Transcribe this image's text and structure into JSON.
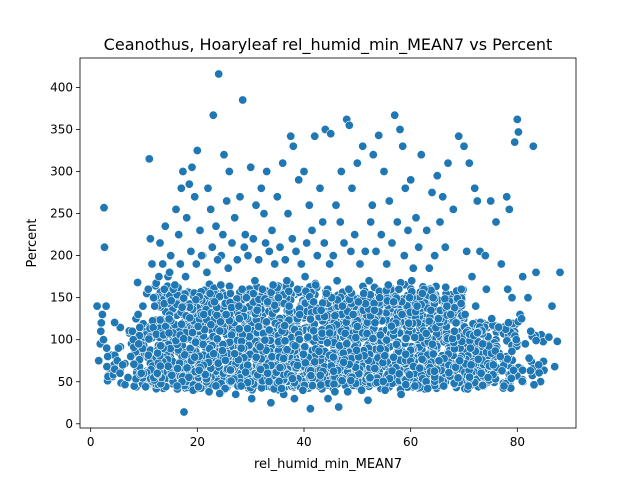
{
  "chart_data": {
    "type": "scatter",
    "title": "Ceanothus, Hoaryleaf rel_humid_min_MEAN7 vs Percent",
    "xlabel": "rel_humid_min_MEAN7",
    "ylabel": "Percent",
    "xlim": [
      -2,
      91
    ],
    "ylim": [
      -5,
      435
    ],
    "xticks": [
      0,
      20,
      40,
      60,
      80
    ],
    "yticks": [
      0,
      50,
      100,
      150,
      200,
      250,
      300,
      350,
      400
    ],
    "grid": false,
    "legend": "none",
    "marker_color": "#1f77b4",
    "marker_edge_color": "#ffffff",
    "points": [
      [
        1.2,
        140
      ],
      [
        1.5,
        75
      ],
      [
        1.8,
        95
      ],
      [
        2.0,
        120
      ],
      [
        2.2,
        130
      ],
      [
        2.5,
        257
      ],
      [
        2.6,
        210
      ],
      [
        2.9,
        140
      ],
      [
        3.0,
        90
      ],
      [
        3.2,
        80
      ],
      [
        2.4,
        100
      ],
      [
        1.9,
        110
      ],
      [
        4.5,
        65
      ],
      [
        5.0,
        75
      ],
      [
        5.2,
        90
      ],
      [
        5.5,
        60
      ],
      [
        6.0,
        70
      ],
      [
        7.0,
        55
      ],
      [
        7.5,
        80
      ],
      [
        8.0,
        100
      ],
      [
        8.5,
        125
      ],
      [
        8.8,
        168
      ],
      [
        9.0,
        95
      ],
      [
        9.5,
        60
      ],
      [
        10.5,
        155
      ],
      [
        11.0,
        315
      ],
      [
        11.2,
        220
      ],
      [
        11.5,
        190
      ],
      [
        12.0,
        140
      ],
      [
        12.5,
        60
      ],
      [
        13.0,
        215
      ],
      [
        13.5,
        190
      ],
      [
        14.0,
        235
      ],
      [
        14.5,
        175
      ],
      [
        15.0,
        200
      ],
      [
        15.5,
        160
      ],
      [
        16.0,
        255
      ],
      [
        16.5,
        225
      ],
      [
        17.0,
        280
      ],
      [
        17.3,
        300
      ],
      [
        17.5,
        14
      ],
      [
        18.0,
        245
      ],
      [
        18.5,
        285
      ],
      [
        19.0,
        305
      ],
      [
        19.5,
        270
      ],
      [
        20.0,
        325
      ],
      [
        20.5,
        230
      ],
      [
        21.0,
        200
      ],
      [
        22.0,
        280
      ],
      [
        22.5,
        255
      ],
      [
        23.0,
        367
      ],
      [
        23.5,
        235
      ],
      [
        24.0,
        416
      ],
      [
        24.5,
        200
      ],
      [
        25.0,
        320
      ],
      [
        25.5,
        265
      ],
      [
        26.0,
        300
      ],
      [
        27.0,
        245
      ],
      [
        28.0,
        270
      ],
      [
        28.5,
        385
      ],
      [
        29.0,
        225
      ],
      [
        30.0,
        305
      ],
      [
        31.0,
        260
      ],
      [
        32.0,
        280
      ],
      [
        32.5,
        250
      ],
      [
        33.0,
        300
      ],
      [
        34.0,
        230
      ],
      [
        35.0,
        270
      ],
      [
        36.0,
        310
      ],
      [
        37.0,
        250
      ],
      [
        37.5,
        342
      ],
      [
        38.0,
        330
      ],
      [
        39.0,
        290
      ],
      [
        40.0,
        300
      ],
      [
        41.0,
        260
      ],
      [
        42.0,
        342
      ],
      [
        43.0,
        280
      ],
      [
        43.5,
        240
      ],
      [
        44.0,
        350
      ],
      [
        44.5,
        30
      ],
      [
        45.0,
        345
      ],
      [
        46.0,
        260
      ],
      [
        46.5,
        20
      ],
      [
        47.0,
        300
      ],
      [
        48.0,
        362
      ],
      [
        48.5,
        355
      ],
      [
        49.0,
        280
      ],
      [
        50.0,
        310
      ],
      [
        51.0,
        330
      ],
      [
        52.0,
        28
      ],
      [
        52.5,
        240
      ],
      [
        53.0,
        320
      ],
      [
        54.0,
        343
      ],
      [
        55.0,
        300
      ],
      [
        56.0,
        265
      ],
      [
        57.0,
        367
      ],
      [
        58.0,
        350
      ],
      [
        58.5,
        330
      ],
      [
        59.0,
        280
      ],
      [
        60.0,
        290
      ],
      [
        61.0,
        245
      ],
      [
        62.0,
        320
      ],
      [
        63.0,
        230
      ],
      [
        64.0,
        275
      ],
      [
        65.0,
        295
      ],
      [
        66.0,
        270
      ],
      [
        67.0,
        310
      ],
      [
        68.0,
        255
      ],
      [
        69.0,
        342
      ],
      [
        70.0,
        330
      ],
      [
        71.0,
        310
      ],
      [
        72.0,
        280
      ],
      [
        72.5,
        265
      ],
      [
        73.0,
        205
      ],
      [
        74.0,
        200
      ],
      [
        75.0,
        265
      ],
      [
        76.0,
        240
      ],
      [
        77.0,
        190
      ],
      [
        78.0,
        270
      ],
      [
        78.5,
        255
      ],
      [
        79.0,
        150
      ],
      [
        79.5,
        335
      ],
      [
        80.0,
        362
      ],
      [
        80.2,
        347
      ],
      [
        80.5,
        130
      ],
      [
        81.0,
        175
      ],
      [
        82.0,
        150
      ],
      [
        83.0,
        330
      ],
      [
        83.5,
        180
      ],
      [
        84.0,
        70
      ],
      [
        86.5,
        140
      ],
      [
        87.0,
        68
      ],
      [
        87.5,
        98
      ],
      [
        88.0,
        180
      ],
      [
        78.2,
        160
      ],
      [
        76.5,
        115
      ],
      [
        75.5,
        70
      ],
      [
        74.5,
        55
      ],
      [
        73.5,
        95
      ],
      [
        72.2,
        140
      ],
      [
        71.5,
        175
      ],
      [
        70.5,
        205
      ],
      [
        69.5,
        160
      ],
      [
        68.5,
        120
      ],
      [
        82.5,
        110
      ],
      [
        81.5,
        95
      ],
      [
        80.8,
        125
      ],
      [
        79.8,
        100
      ],
      [
        77.5,
        45
      ],
      [
        76.8,
        80
      ],
      [
        75.2,
        125
      ],
      [
        74.2,
        160
      ],
      [
        73.2,
        60
      ],
      [
        71.2,
        90
      ],
      [
        70.2,
        130
      ],
      [
        69.2,
        75
      ],
      [
        66.5,
        210
      ],
      [
        65.5,
        240
      ],
      [
        64.5,
        200
      ],
      [
        63.5,
        185
      ],
      [
        62.5,
        160
      ],
      [
        61.5,
        210
      ],
      [
        60.5,
        185
      ],
      [
        59.5,
        230
      ],
      [
        58.8,
        200
      ],
      [
        57.5,
        240
      ],
      [
        56.5,
        215
      ],
      [
        55.5,
        190
      ],
      [
        54.5,
        225
      ],
      [
        53.5,
        205
      ],
      [
        52.8,
        260
      ],
      [
        51.5,
        205
      ],
      [
        50.5,
        190
      ],
      [
        49.5,
        225
      ],
      [
        48.8,
        205
      ],
      [
        47.5,
        215
      ],
      [
        46.8,
        240
      ],
      [
        45.5,
        200
      ],
      [
        44.8,
        190
      ],
      [
        43.8,
        215
      ],
      [
        42.5,
        200
      ],
      [
        41.5,
        230
      ],
      [
        40.5,
        215
      ],
      [
        39.5,
        190
      ],
      [
        38.5,
        205
      ],
      [
        37.8,
        220
      ],
      [
        36.5,
        195
      ],
      [
        35.5,
        210
      ],
      [
        34.5,
        190
      ],
      [
        33.5,
        205
      ],
      [
        32.8,
        215
      ],
      [
        31.5,
        195
      ],
      [
        30.5,
        220
      ],
      [
        29.5,
        200
      ],
      [
        28.8,
        210
      ],
      [
        27.5,
        195
      ],
      [
        26.5,
        215
      ],
      [
        25.8,
        185
      ],
      [
        24.8,
        225
      ],
      [
        23.8,
        195
      ],
      [
        22.8,
        210
      ],
      [
        21.8,
        180
      ],
      [
        20.8,
        200
      ],
      [
        19.8,
        190
      ],
      [
        18.8,
        205
      ],
      [
        17.8,
        175
      ],
      [
        16.8,
        190
      ],
      [
        15.8,
        165
      ],
      [
        14.8,
        180
      ],
      [
        13.8,
        160
      ],
      [
        12.8,
        175
      ],
      [
        11.8,
        150
      ],
      [
        10.8,
        160
      ],
      [
        9.8,
        140
      ],
      [
        8.9,
        130
      ],
      [
        7.8,
        110
      ],
      [
        30.2,
        30
      ],
      [
        33.8,
        25
      ],
      [
        36.2,
        35
      ],
      [
        39.8,
        40
      ],
      [
        41.2,
        18
      ],
      [
        38.2,
        30
      ],
      [
        27.2,
        35
      ],
      [
        22.2,
        38
      ],
      [
        19.2,
        40
      ],
      [
        25.2,
        42
      ],
      [
        48.2,
        38
      ],
      [
        55.2,
        40
      ],
      [
        63.2,
        42
      ],
      [
        66.2,
        45
      ],
      [
        70.8,
        45
      ],
      [
        58.2,
        35
      ],
      [
        45.8,
        38
      ],
      [
        35.8,
        42
      ],
      [
        50.8,
        40
      ],
      [
        60.8,
        45
      ],
      [
        28.2,
        45
      ],
      [
        24.2,
        36
      ],
      [
        20.2,
        44
      ],
      [
        16.2,
        45
      ],
      [
        45.2,
        150
      ],
      [
        46.2,
        170
      ],
      [
        47.2,
        140
      ],
      [
        48.4,
        160
      ],
      [
        49.2,
        130
      ],
      [
        50.2,
        145
      ],
      [
        51.2,
        155
      ],
      [
        52.2,
        170
      ],
      [
        53.2,
        135
      ],
      [
        54.2,
        150
      ],
      [
        55.8,
        165
      ],
      [
        56.8,
        145
      ],
      [
        57.8,
        160
      ],
      [
        58.4,
        130
      ],
      [
        59.8,
        150
      ],
      [
        60.2,
        170
      ],
      [
        61.2,
        140
      ],
      [
        62.2,
        155
      ],
      [
        63.8,
        135
      ],
      [
        64.2,
        150
      ],
      [
        65.2,
        125
      ],
      [
        66.8,
        140
      ],
      [
        67.5,
        130
      ],
      [
        68.2,
        110
      ],
      [
        35.2,
        150
      ],
      [
        36.8,
        170
      ],
      [
        37.2,
        140
      ],
      [
        38.8,
        160
      ],
      [
        39.2,
        130
      ],
      [
        40.2,
        175
      ],
      [
        41.8,
        145
      ],
      [
        42.2,
        165
      ],
      [
        43.2,
        135
      ],
      [
        44.2,
        155
      ],
      [
        34.2,
        165
      ],
      [
        33.2,
        145
      ],
      [
        32.2,
        160
      ],
      [
        31.2,
        135
      ],
      [
        30.8,
        170
      ],
      [
        29.2,
        150
      ],
      [
        28.4,
        160
      ],
      [
        27.8,
        140
      ],
      [
        26.2,
        155
      ],
      [
        25.4,
        130
      ],
      [
        24.4,
        165
      ],
      [
        23.2,
        145
      ],
      [
        22.4,
        155
      ],
      [
        21.2,
        130
      ]
    ]
  }
}
